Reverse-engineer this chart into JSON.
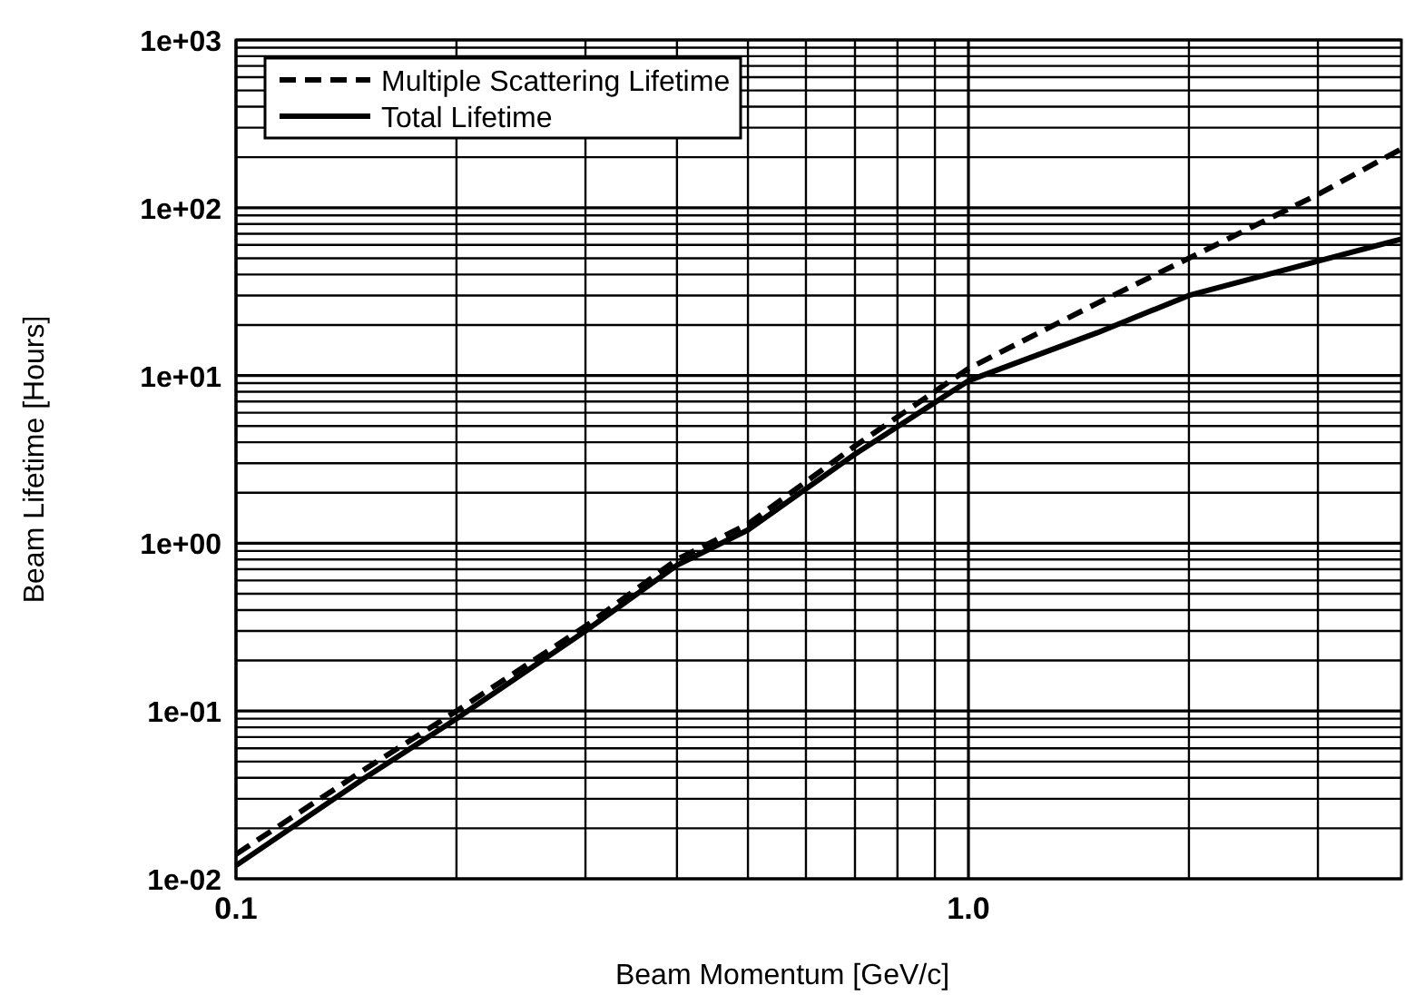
{
  "chart_data": {
    "type": "line",
    "xlabel": "Beam Momentum [GeV/c]",
    "ylabel": "Beam Lifetime [Hours]",
    "log": "xy",
    "grid": true,
    "legend": "top left",
    "marker": "none",
    "xlim": [
      0.1,
      3.9
    ],
    "ylim": [
      0.01,
      1000
    ],
    "xticks": [
      {
        "value": 0.1,
        "label": "0.1"
      },
      {
        "value": 0.2,
        "label": null
      },
      {
        "value": 0.3,
        "label": null
      },
      {
        "value": 0.4,
        "label": null
      },
      {
        "value": 0.5,
        "label": null
      },
      {
        "value": 0.6,
        "label": null
      },
      {
        "value": 0.7,
        "label": null
      },
      {
        "value": 0.8,
        "label": null
      },
      {
        "value": 0.9,
        "label": null
      },
      {
        "value": 1,
        "label": "1.0"
      },
      {
        "value": 2,
        "label": null
      },
      {
        "value": 3,
        "label": null
      }
    ],
    "yticks": [
      {
        "value": 0.01,
        "label": "1e-02"
      },
      {
        "value": 0.02,
        "label": null
      },
      {
        "value": 0.03,
        "label": null
      },
      {
        "value": 0.04,
        "label": null
      },
      {
        "value": 0.05,
        "label": null
      },
      {
        "value": 0.06,
        "label": null
      },
      {
        "value": 0.07,
        "label": null
      },
      {
        "value": 0.08,
        "label": null
      },
      {
        "value": 0.09,
        "label": null
      },
      {
        "value": 0.1,
        "label": "1e-01"
      },
      {
        "value": 0.2,
        "label": null
      },
      {
        "value": 0.3,
        "label": null
      },
      {
        "value": 0.4,
        "label": null
      },
      {
        "value": 0.5,
        "label": null
      },
      {
        "value": 0.6,
        "label": null
      },
      {
        "value": 0.7,
        "label": null
      },
      {
        "value": 0.8,
        "label": null
      },
      {
        "value": 0.9,
        "label": null
      },
      {
        "value": 1,
        "label": "1e+00"
      },
      {
        "value": 2,
        "label": null
      },
      {
        "value": 3,
        "label": null
      },
      {
        "value": 4,
        "label": null
      },
      {
        "value": 5,
        "label": null
      },
      {
        "value": 6,
        "label": null
      },
      {
        "value": 7,
        "label": null
      },
      {
        "value": 8,
        "label": null
      },
      {
        "value": 9,
        "label": null
      },
      {
        "value": 10,
        "label": "1e+01"
      },
      {
        "value": 20,
        "label": null
      },
      {
        "value": 30,
        "label": null
      },
      {
        "value": 40,
        "label": null
      },
      {
        "value": 50,
        "label": null
      },
      {
        "value": 60,
        "label": null
      },
      {
        "value": 70,
        "label": null
      },
      {
        "value": 80,
        "label": null
      },
      {
        "value": 90,
        "label": null
      },
      {
        "value": 100,
        "label": "1e+02"
      },
      {
        "value": 200,
        "label": null
      },
      {
        "value": 300,
        "label": null
      },
      {
        "value": 400,
        "label": null
      },
      {
        "value": 500,
        "label": null
      },
      {
        "value": 600,
        "label": null
      },
      {
        "value": 700,
        "label": null
      },
      {
        "value": 800,
        "label": null
      },
      {
        "value": 900,
        "label": null
      },
      {
        "value": 1000,
        "label": "1e+03"
      }
    ],
    "x": [
      0.1,
      0.15,
      0.2,
      0.3,
      0.4,
      0.5,
      0.7,
      1,
      1.5,
      2,
      3,
      3.9
    ],
    "series": [
      {
        "name": "Multiple Scattering Lifetime",
        "color": "#000000",
        "line_style": "dashed",
        "values": [
          0.014,
          0.045,
          0.1,
          0.32,
          0.8,
          1.3,
          3.8,
          11,
          27,
          50,
          120,
          224
        ]
      },
      {
        "name": "Total Lifetime",
        "color": "#000000",
        "line_style": "solid",
        "values": [
          0.012,
          0.04,
          0.09,
          0.3,
          0.74,
          1.2,
          3.4,
          9.3,
          18,
          30,
          48,
          65
        ]
      }
    ]
  }
}
